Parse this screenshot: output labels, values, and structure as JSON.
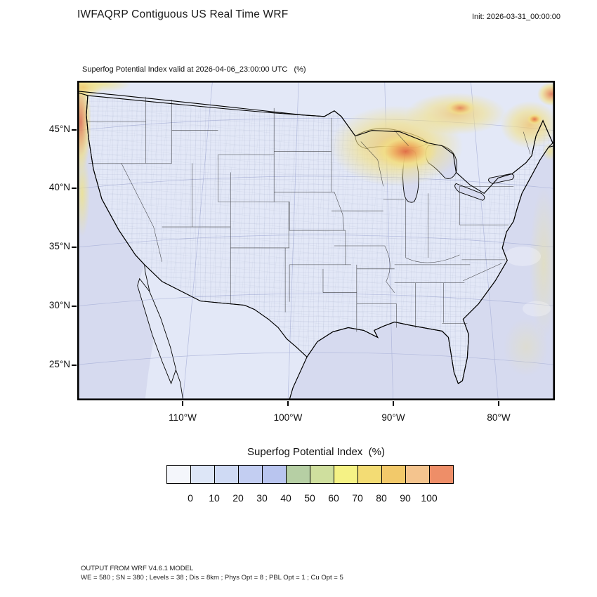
{
  "page": {
    "title": "IWFAQRP Contiguous US Real Time WRF",
    "init_label": "Init: 2026-03-31_00:00:00"
  },
  "map": {
    "subtitle": "Superfog Potential Index valid at 2026-04-06_23:00:00 UTC   (%)",
    "lat_ticks": [
      "45°N",
      "40°N",
      "35°N",
      "30°N",
      "25°N"
    ],
    "lon_ticks": [
      "110°W",
      "100°W",
      "90°W",
      "80°W"
    ]
  },
  "legend": {
    "title": "Superfog Potential Index  (%)",
    "ticks": [
      "0",
      "10",
      "20",
      "30",
      "40",
      "50",
      "60",
      "70",
      "80",
      "90",
      "100"
    ],
    "colors": [
      "#f4f6fb",
      "#dde6f7",
      "#cfdaf4",
      "#c3cef2",
      "#b9c5ef",
      "#b6cfa4",
      "#cfdf9e",
      "#f5f285",
      "#f3dc74",
      "#f2c96a",
      "#f4c48e",
      "#ee8e68"
    ]
  },
  "footer": {
    "line1": "OUTPUT FROM WRF V4.6.1 MODEL",
    "line2": "WE = 580 ; SN = 380 ; Levels = 38 ; Dis = 8km ; Phys Opt = 8 ; PBL Opt = 1 ; Cu Opt = 5"
  },
  "chart_data": {
    "type": "heatmap",
    "title": "Superfog Potential Index (%)",
    "valid_time": "2026-04-06_23:00:00 UTC",
    "init_time": "2026-03-31_00:00:00",
    "model": "WRF V4.6.1, WE=580, SN=380, Levels=38, Dis=8km, Phys Opt=8, PBL Opt=1, Cu Opt=5",
    "x_ticks": [
      "110°W",
      "100°W",
      "90°W",
      "80°W"
    ],
    "y_ticks": [
      "45°N",
      "40°N",
      "35°N",
      "30°N",
      "25°N"
    ],
    "colorbar_ticks": [
      0,
      10,
      20,
      30,
      40,
      50,
      60,
      70,
      80,
      90,
      100
    ],
    "colorbar_colors": [
      "#f4f6fb",
      "#dde6f7",
      "#cfdaf4",
      "#c3cef2",
      "#b9c5ef",
      "#b6cfa4",
      "#cfdf9e",
      "#f5f285",
      "#f3dc74",
      "#f2c96a",
      "#f4c48e",
      "#ee8e68"
    ],
    "regions": [
      {
        "area": "Northern Minnesota / western Lake Superior / northern Wisconsin / Upper Michigan",
        "index_range": "60-100"
      },
      {
        "area": "Canada north and east of Lake Superior",
        "index_range": "50-90"
      },
      {
        "area": "Northern New England and Canadian Maritimes (map NE corner)",
        "index_range": "40-90"
      },
      {
        "area": "Pacific Northwest coastal fringe along map west edge",
        "index_range": "40-90"
      },
      {
        "area": "Faint streaks over western Atlantic along map east edge",
        "index_range": "10-40"
      },
      {
        "area": "Most of contiguous US interior",
        "index_range": "0-20"
      }
    ]
  }
}
